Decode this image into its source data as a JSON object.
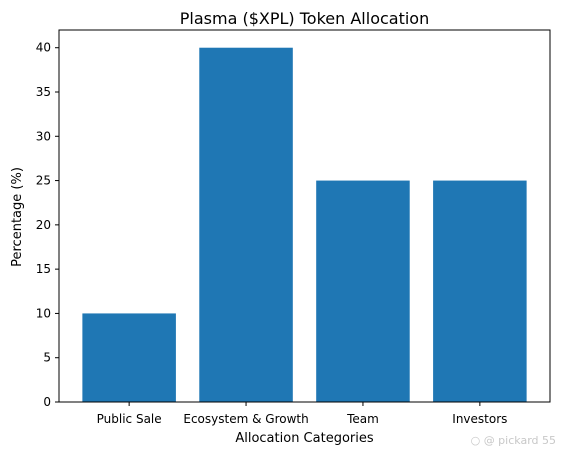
{
  "chart_data": {
    "type": "bar",
    "title": "Plasma ($XPL) Token Allocation",
    "xlabel": "Allocation Categories",
    "ylabel": "Percentage (%)",
    "categories": [
      "Public Sale",
      "Ecosystem & Growth",
      "Team",
      "Investors"
    ],
    "values": [
      10,
      40,
      25,
      25
    ],
    "ylim": [
      0,
      42
    ],
    "yticks": [
      0,
      5,
      10,
      15,
      20,
      25,
      30,
      35,
      40
    ],
    "bar_color": "#1f77b4",
    "grid": false
  },
  "watermark": "○ @ pickard 55"
}
